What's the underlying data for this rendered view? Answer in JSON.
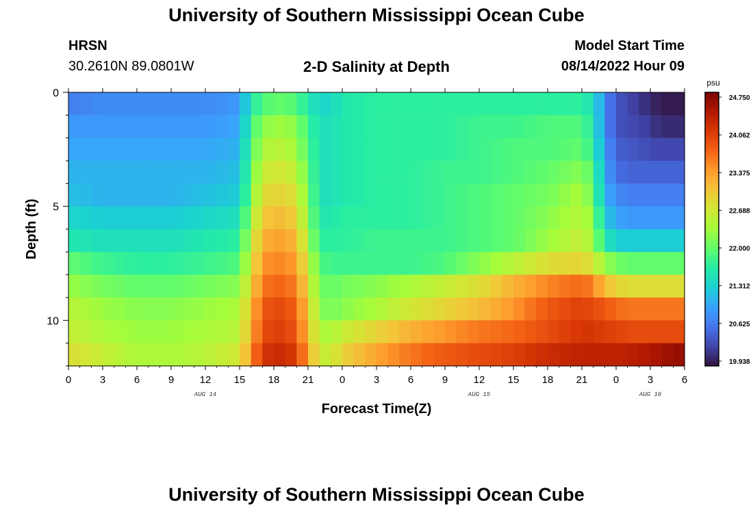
{
  "page": {
    "title": "University of Southern Mississippi Ocean Cube",
    "station_name": "HRSN",
    "station_coords": "30.2610N  89.0801W",
    "plot_title": "2-D Salinity at Depth",
    "model_start_label": "Model Start Time",
    "model_start_value": "08/14/2022 Hour 09",
    "footer_title": "University of Southern Mississippi Ocean Cube"
  },
  "colors": {
    "background": "#ffffff",
    "text": "#000000",
    "scale": [
      "#30123b",
      "#4145ab",
      "#4675ed",
      "#39a2fc",
      "#1bcfd4",
      "#24eca6",
      "#61fc6c",
      "#a4fc3b",
      "#d1e834",
      "#f3c63a",
      "#fe9b2d",
      "#f36315",
      "#d93806",
      "#b11901",
      "#7a0402"
    ]
  },
  "chart_data": {
    "type": "heatmap",
    "title": "2-D Salinity at Depth",
    "xlabel": "Forecast Time(Z)",
    "ylabel": "Depth (ft)",
    "x_ticks": [
      "0",
      "3",
      "6",
      "9",
      "12",
      "15",
      "18",
      "21",
      "0",
      "3",
      "6",
      "9",
      "12",
      "15",
      "18",
      "21",
      "0",
      "3",
      "6"
    ],
    "x_range_hours": [
      0,
      54
    ],
    "day_labels": [
      {
        "label": "AUG 14",
        "hour": 12
      },
      {
        "label": "AUG 15",
        "hour": 36
      },
      {
        "label": "AUG 16",
        "hour": 51
      }
    ],
    "y_ticks": [
      "0",
      "5",
      "10"
    ],
    "y_range_ft": [
      0,
      12
    ],
    "colorbar": {
      "unit": "psu",
      "min": 19.938,
      "max": 24.75,
      "ticks": [
        "24.750",
        "24.062",
        "23.375",
        "22.688",
        "22.000",
        "21.312",
        "20.625",
        "19.938"
      ]
    },
    "time_hours": [
      0,
      3,
      6,
      9,
      12,
      15,
      16,
      17,
      18,
      19,
      20,
      21,
      22,
      23,
      24,
      27,
      30,
      33,
      36,
      39,
      42,
      45,
      46,
      47,
      48,
      49,
      50,
      51,
      52,
      54
    ],
    "depth_layers_ft": [
      0.5,
      1.5,
      2.5,
      3.5,
      4.5,
      5.5,
      6.5,
      7.5,
      8.5,
      9.5,
      10.5,
      11.5
    ],
    "salinity_psu": [
      [
        20.7,
        20.8,
        20.8,
        20.8,
        20.8,
        20.9,
        21.6,
        21.9,
        22.0,
        22.0,
        21.9,
        21.6,
        21.4,
        21.4,
        21.6,
        21.7,
        21.7,
        21.7,
        21.7,
        21.7,
        21.7,
        21.7,
        21.5,
        20.8,
        20.4,
        20.3,
        20.2,
        20.1,
        20.0,
        20.0
      ],
      [
        20.9,
        20.9,
        20.9,
        20.9,
        20.9,
        21.0,
        21.8,
        22.2,
        22.3,
        22.3,
        22.2,
        21.8,
        21.5,
        21.5,
        21.6,
        21.7,
        21.7,
        21.7,
        21.8,
        21.8,
        21.9,
        21.9,
        21.6,
        20.8,
        20.4,
        20.3,
        20.3,
        20.2,
        20.1,
        20.1
      ],
      [
        21.0,
        21.0,
        21.0,
        21.0,
        21.0,
        21.1,
        21.9,
        22.4,
        22.5,
        22.5,
        22.3,
        21.9,
        21.5,
        21.5,
        21.6,
        21.7,
        21.7,
        21.7,
        21.8,
        21.9,
        21.9,
        22.0,
        21.7,
        20.9,
        20.5,
        20.4,
        20.4,
        20.3,
        20.3,
        20.3
      ],
      [
        21.1,
        21.1,
        21.1,
        21.1,
        21.1,
        21.2,
        22.0,
        22.6,
        22.7,
        22.7,
        22.5,
        22.0,
        21.5,
        21.5,
        21.6,
        21.7,
        21.7,
        21.8,
        21.8,
        21.9,
        22.0,
        22.2,
        21.9,
        21.0,
        20.6,
        20.5,
        20.5,
        20.5,
        20.5,
        20.5
      ],
      [
        21.2,
        21.1,
        21.1,
        21.1,
        21.2,
        21.3,
        22.1,
        22.8,
        22.9,
        22.9,
        22.7,
        22.1,
        21.5,
        21.5,
        21.6,
        21.7,
        21.7,
        21.8,
        21.9,
        22.0,
        22.1,
        22.4,
        22.0,
        21.1,
        20.8,
        20.7,
        20.7,
        20.7,
        20.7,
        20.7
      ],
      [
        21.4,
        21.3,
        21.3,
        21.3,
        21.4,
        21.5,
        22.3,
        23.0,
        23.1,
        23.1,
        22.9,
        22.2,
        21.6,
        21.6,
        21.7,
        21.7,
        21.7,
        21.8,
        21.9,
        22.0,
        22.2,
        22.5,
        22.2,
        21.3,
        21.0,
        20.9,
        20.9,
        20.9,
        20.9,
        20.9
      ],
      [
        21.6,
        21.5,
        21.5,
        21.5,
        21.6,
        21.7,
        22.5,
        23.2,
        23.3,
        23.3,
        23.1,
        22.4,
        21.7,
        21.7,
        21.7,
        21.8,
        21.8,
        21.8,
        21.9,
        22.0,
        22.3,
        22.6,
        22.3,
        21.6,
        21.3,
        21.3,
        21.3,
        21.3,
        21.3,
        21.3
      ],
      [
        22.0,
        21.8,
        21.7,
        21.7,
        21.8,
        21.9,
        22.7,
        23.4,
        23.5,
        23.5,
        23.3,
        22.6,
        21.9,
        21.8,
        21.8,
        21.8,
        21.8,
        21.9,
        22.2,
        22.5,
        22.8,
        22.9,
        22.7,
        22.3,
        22.1,
        22.0,
        22.0,
        22.0,
        22.0,
        22.0
      ],
      [
        22.3,
        22.1,
        22.0,
        22.0,
        22.1,
        22.2,
        22.9,
        23.6,
        23.7,
        23.7,
        23.5,
        22.8,
        22.1,
        22.0,
        22.1,
        22.2,
        22.4,
        22.6,
        22.8,
        23.2,
        23.5,
        23.7,
        23.5,
        23.1,
        22.9,
        22.8,
        22.8,
        22.8,
        22.8,
        22.8
      ],
      [
        22.5,
        22.3,
        22.2,
        22.2,
        22.3,
        22.4,
        23.1,
        23.8,
        23.9,
        23.9,
        23.7,
        23.0,
        22.2,
        22.1,
        22.2,
        22.4,
        22.7,
        22.9,
        23.1,
        23.4,
        23.8,
        24.0,
        23.9,
        23.8,
        23.7,
        23.6,
        23.6,
        23.6,
        23.6,
        23.6
      ],
      [
        22.6,
        22.4,
        22.3,
        22.3,
        22.4,
        22.5,
        23.2,
        23.9,
        24.0,
        24.0,
        23.8,
        23.1,
        22.4,
        22.4,
        22.6,
        22.9,
        23.2,
        23.4,
        23.6,
        23.7,
        23.9,
        24.1,
        24.1,
        24.0,
        24.0,
        23.9,
        23.9,
        23.9,
        23.9,
        23.9
      ],
      [
        22.8,
        22.6,
        22.4,
        22.4,
        22.5,
        22.7,
        23.4,
        24.1,
        24.2,
        24.2,
        24.0,
        23.3,
        22.6,
        22.6,
        22.9,
        23.3,
        23.6,
        23.8,
        23.9,
        24.0,
        24.2,
        24.3,
        24.3,
        24.3,
        24.3,
        24.3,
        24.4,
        24.4,
        24.5,
        24.6
      ]
    ]
  }
}
